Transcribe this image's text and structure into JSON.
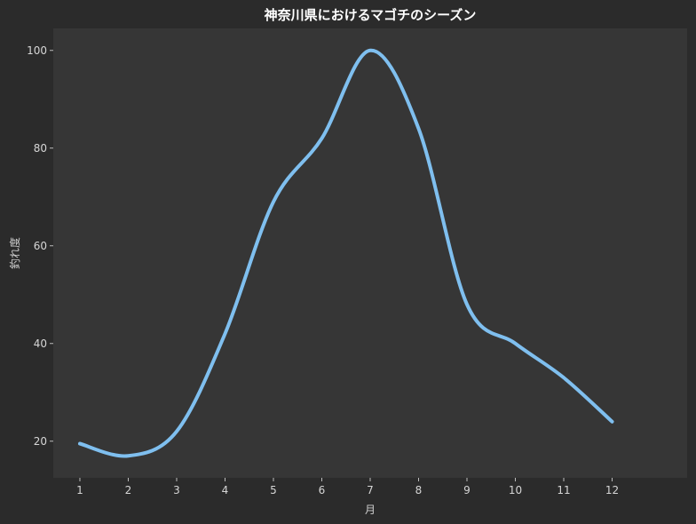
{
  "chart_data": {
    "type": "line",
    "title": "神奈川県におけるマゴチのシーズン",
    "xlabel": "月",
    "ylabel": "釣れ度",
    "x": [
      1,
      2,
      3,
      4,
      5,
      6,
      7,
      8,
      9,
      10,
      11,
      12
    ],
    "xlim": [
      0.45,
      13.55
    ],
    "ylim": [
      12.5,
      104.5
    ],
    "yticks": [
      20,
      40,
      60,
      80,
      100
    ],
    "series": [
      {
        "values": [
          19.5,
          17,
          22,
          42,
          69,
          82,
          100,
          84,
          48,
          40,
          33,
          24
        ],
        "color": "#7fbfef"
      }
    ],
    "grid": false,
    "background": "#2b2b2b",
    "plot_background": "#363636"
  }
}
